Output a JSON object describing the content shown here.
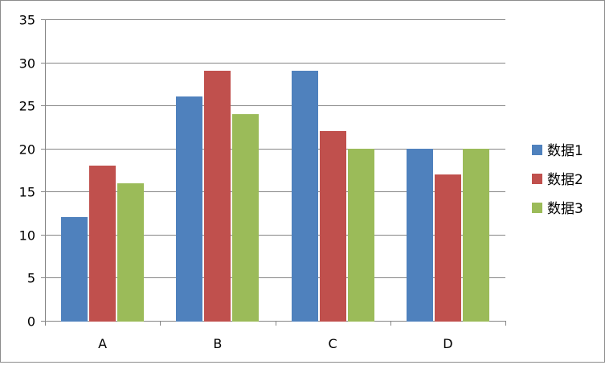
{
  "chart_data": {
    "type": "bar",
    "title": "",
    "xlabel": "",
    "ylabel": "",
    "categories": [
      "A",
      "B",
      "C",
      "D"
    ],
    "series": [
      {
        "name": "数据1",
        "values": [
          12,
          26,
          29,
          20
        ],
        "color": "#4f81bd"
      },
      {
        "name": "数据2",
        "values": [
          18,
          29,
          22,
          17
        ],
        "color": "#c0504d"
      },
      {
        "name": "数据3",
        "values": [
          16,
          24,
          20,
          20
        ],
        "color": "#9bbb59"
      }
    ],
    "ylim": [
      0,
      35
    ],
    "yticks": [
      0,
      5,
      10,
      15,
      20,
      25,
      30,
      35
    ],
    "grid": true,
    "legend_position": "right"
  }
}
